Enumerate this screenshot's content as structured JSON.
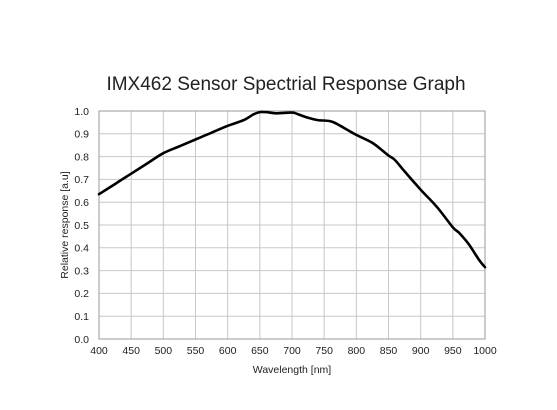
{
  "chart_data": {
    "type": "line",
    "title": "IMX462 Sensor Spectrial Response Graph",
    "xlabel": "Wavelength [nm]",
    "ylabel": "Relative response [a.u]",
    "xlim": [
      400,
      1000
    ],
    "ylim": [
      0,
      1.0
    ],
    "x_ticks": [
      400,
      450,
      500,
      550,
      600,
      650,
      700,
      750,
      800,
      850,
      900,
      950,
      1000
    ],
    "y_ticks": [
      "0.0",
      "0.1",
      "0.2",
      "0.3",
      "0.4",
      "0.5",
      "0.6",
      "0.7",
      "0.8",
      "0.9",
      "1.0"
    ],
    "grid": true,
    "legend": "none",
    "series": [
      {
        "color": "#000000",
        "x": [
          400,
          425,
          450,
          475,
          500,
          525,
          550,
          575,
          600,
          625,
          640,
          650,
          660,
          675,
          700,
          710,
          725,
          740,
          760,
          775,
          800,
          825,
          850,
          860,
          875,
          900,
          925,
          950,
          960,
          975,
          990,
          1000
        ],
        "y": [
          0.635,
          0.68,
          0.725,
          0.77,
          0.815,
          0.845,
          0.875,
          0.905,
          0.935,
          0.96,
          0.985,
          0.995,
          0.995,
          0.99,
          0.993,
          0.985,
          0.97,
          0.96,
          0.955,
          0.935,
          0.895,
          0.86,
          0.805,
          0.785,
          0.735,
          0.655,
          0.58,
          0.49,
          0.465,
          0.415,
          0.35,
          0.315
        ]
      }
    ]
  }
}
